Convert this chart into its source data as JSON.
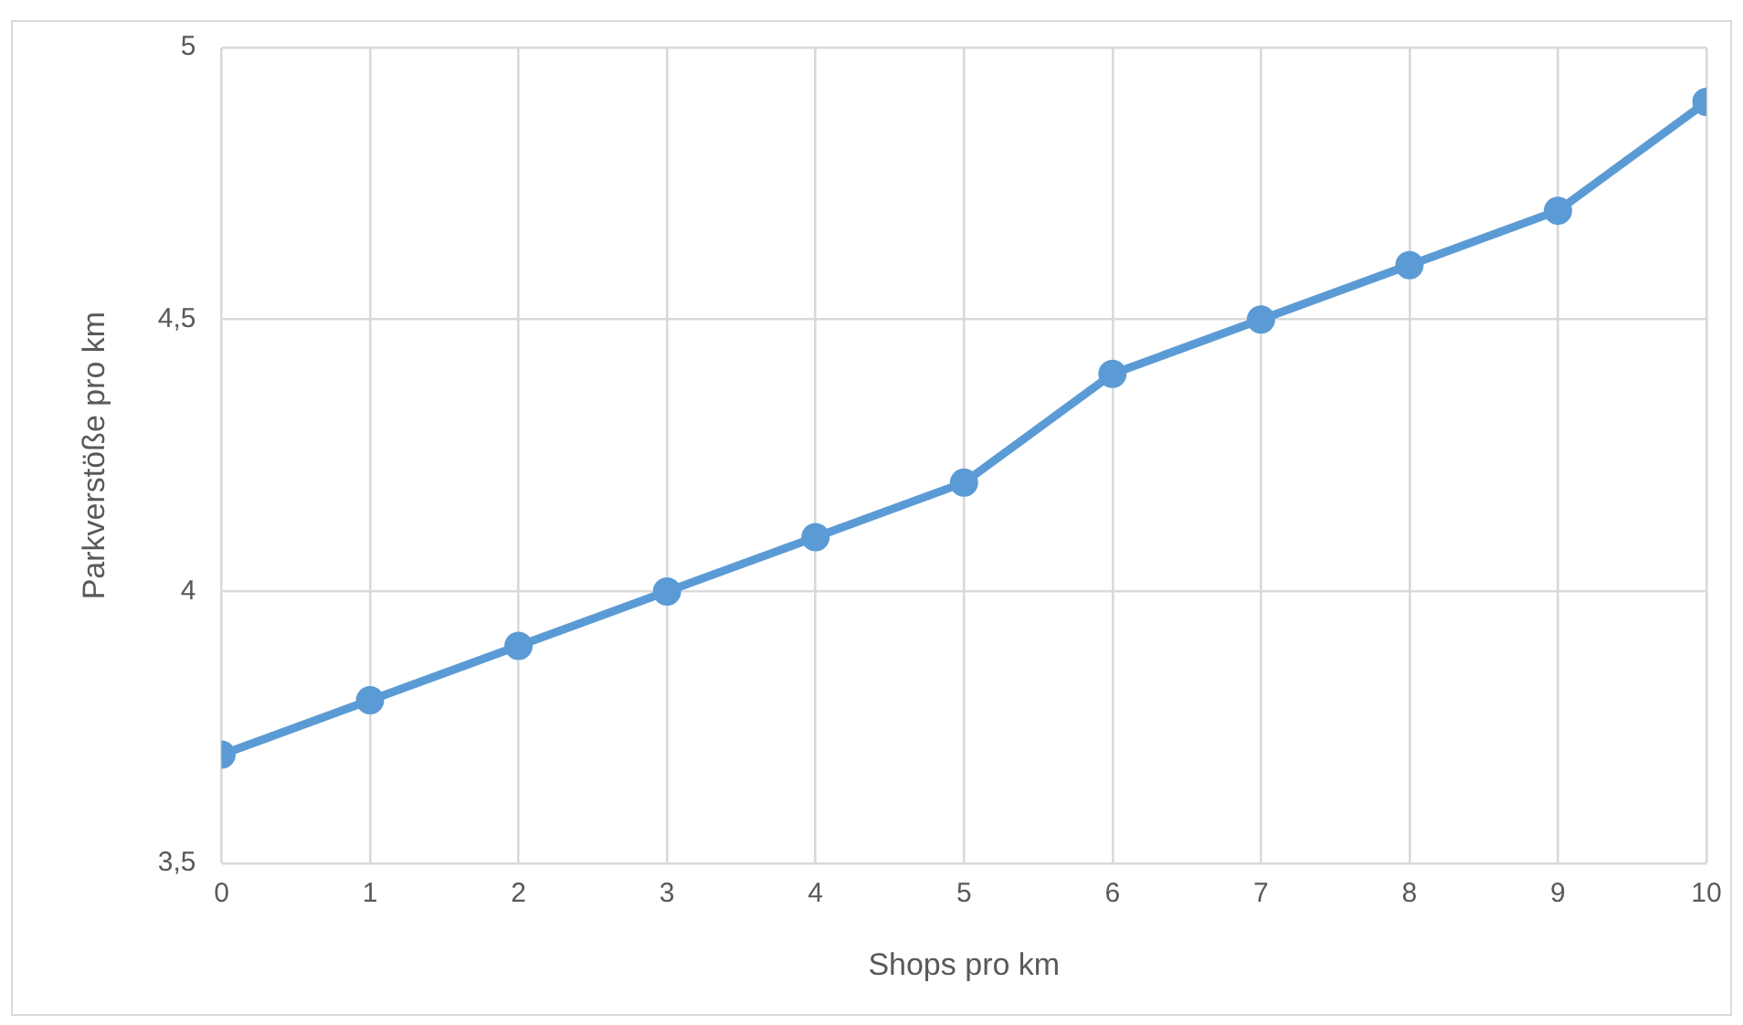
{
  "chart_data": {
    "type": "line",
    "xlabel": "Shops pro km",
    "ylabel": "Parkverstöße pro km",
    "x": [
      0,
      1,
      2,
      3,
      4,
      5,
      6,
      7,
      8,
      9,
      10
    ],
    "series": [
      {
        "color": "#5b9bd5",
        "values": [
          3.7,
          3.8,
          3.9,
          4.0,
          4.1,
          4.2,
          4.4,
          4.5,
          4.6,
          4.7,
          4.9
        ]
      }
    ],
    "xlim": [
      0,
      10
    ],
    "xticks": [
      0,
      1,
      2,
      3,
      4,
      5,
      6,
      7,
      8,
      9,
      10
    ],
    "ylim": [
      3.5,
      5
    ],
    "yticks": [
      {
        "value": 3.5,
        "label": "3,5"
      },
      {
        "value": 4,
        "label": "4"
      },
      {
        "value": 4.5,
        "label": "4,5"
      },
      {
        "value": 5,
        "label": "5"
      }
    ],
    "grid": true,
    "legend": false,
    "marker": "circle",
    "line_style": "solid"
  }
}
